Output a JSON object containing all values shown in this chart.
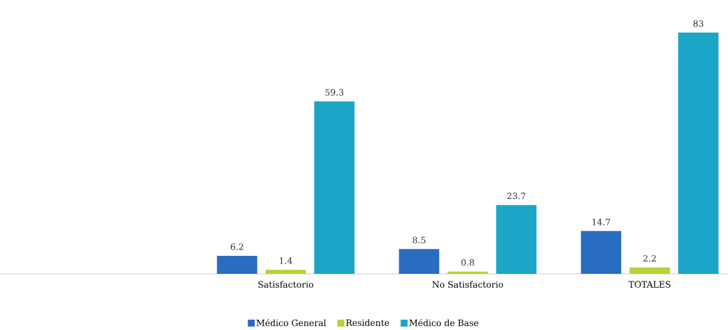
{
  "chart_data": {
    "type": "bar",
    "categories": [
      "Satisfactorio",
      "No Satisfactorio",
      "TOTALES"
    ],
    "series": [
      {
        "name": "Médico General",
        "color": "#2a6cc0",
        "values": [
          6.2,
          8.5,
          14.7
        ]
      },
      {
        "name": "Residente",
        "color": "#b5d334",
        "values": [
          1.4,
          0.8,
          2.2
        ]
      },
      {
        "name": "Médico de Base",
        "color": "#1ba5c6",
        "values": [
          59.3,
          23.7,
          83
        ]
      }
    ],
    "data_labels": true,
    "legend": "bottom"
  }
}
